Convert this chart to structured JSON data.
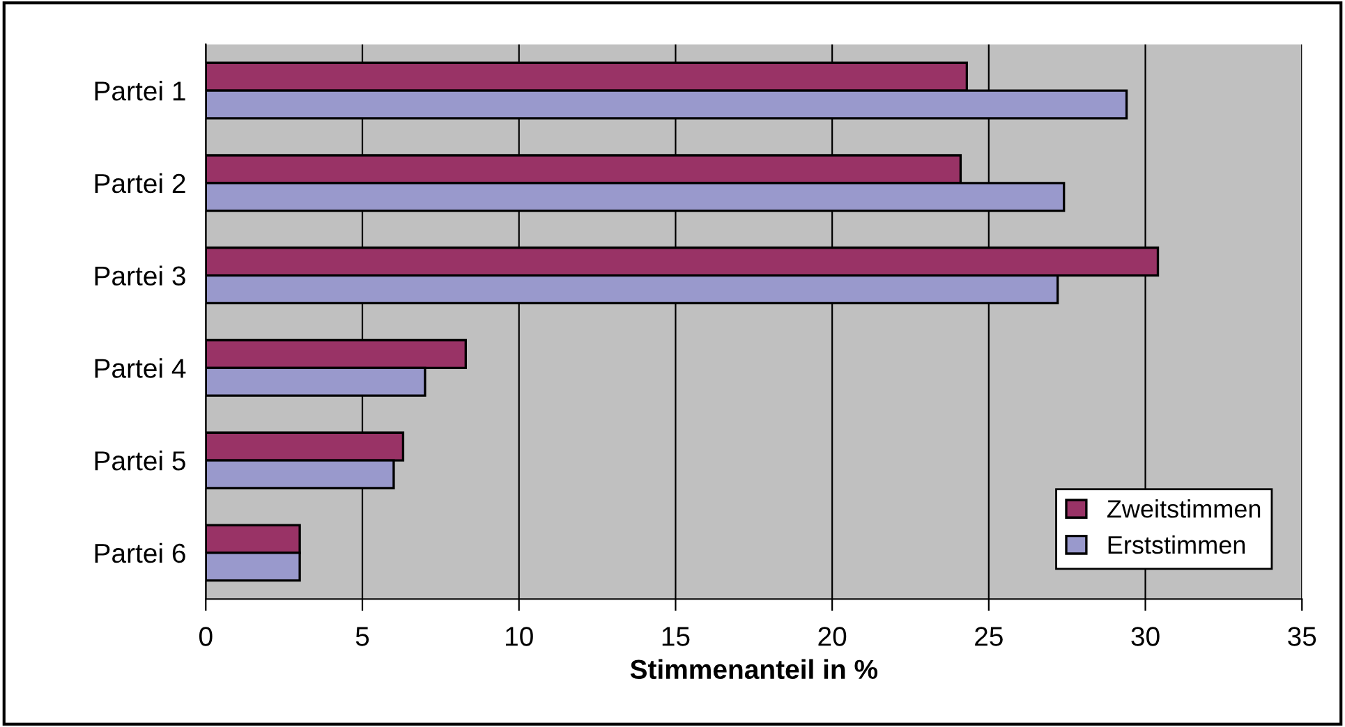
{
  "chart_data": {
    "type": "bar",
    "orientation": "horizontal",
    "xlabel": "Stimmenanteil in %",
    "categories": [
      "Partei 1",
      "Partei 2",
      "Partei 3",
      "Partei 4",
      "Partei 5",
      "Partei 6"
    ],
    "series": [
      {
        "name": "Zweitstimmen",
        "color": "#993366",
        "values": [
          24.3,
          24.1,
          30.4,
          8.3,
          6.3,
          3.0
        ]
      },
      {
        "name": "Erststimmen",
        "color": "#9999cc",
        "values": [
          29.4,
          27.4,
          27.2,
          7.0,
          6.0,
          3.0
        ]
      }
    ],
    "xlim": [
      0,
      35
    ],
    "xticks": [
      0,
      5,
      10,
      15,
      20,
      25,
      30,
      35
    ],
    "grid": "x",
    "legend": "bottom right"
  }
}
